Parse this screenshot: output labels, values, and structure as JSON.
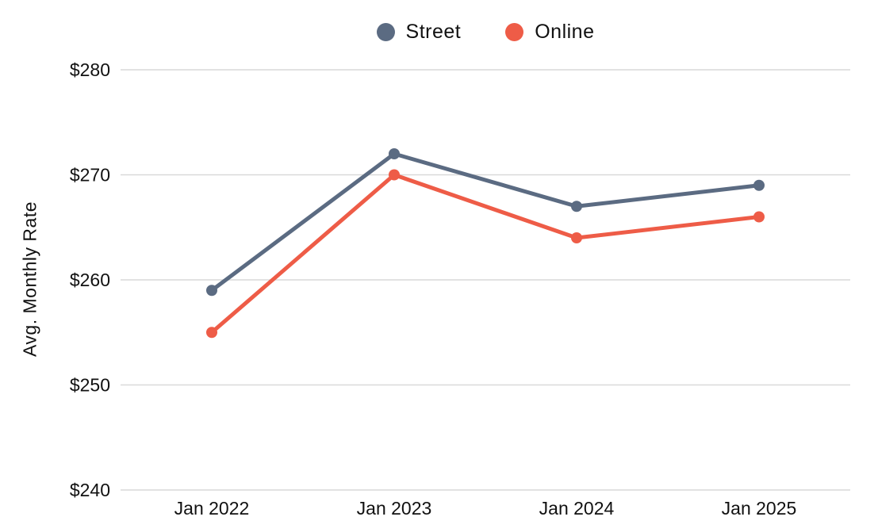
{
  "chart_data": {
    "type": "line",
    "title": "",
    "xlabel": "",
    "ylabel": "Avg. Monthly Rate",
    "categories": [
      "Jan 2022",
      "Jan 2023",
      "Jan 2024",
      "Jan 2025"
    ],
    "series": [
      {
        "name": "Street",
        "color": "#5b6b82",
        "values": [
          259,
          272,
          267,
          269
        ]
      },
      {
        "name": "Online",
        "color": "#ee5c47",
        "values": [
          255,
          270,
          264,
          266
        ]
      }
    ],
    "ylim": [
      240,
      280
    ],
    "yticks": [
      280,
      270,
      260,
      250,
      240
    ],
    "ytick_labels": [
      "$280",
      "$270",
      "$260",
      "$250",
      "$240"
    ],
    "grid": "horizontal-only",
    "legend_position": "top-center"
  },
  "colors": {
    "background": "#ffffff",
    "gridline": "#d9d9d9",
    "text": "#111111",
    "street_series": "#5b6b82",
    "online_series": "#ee5c47"
  }
}
